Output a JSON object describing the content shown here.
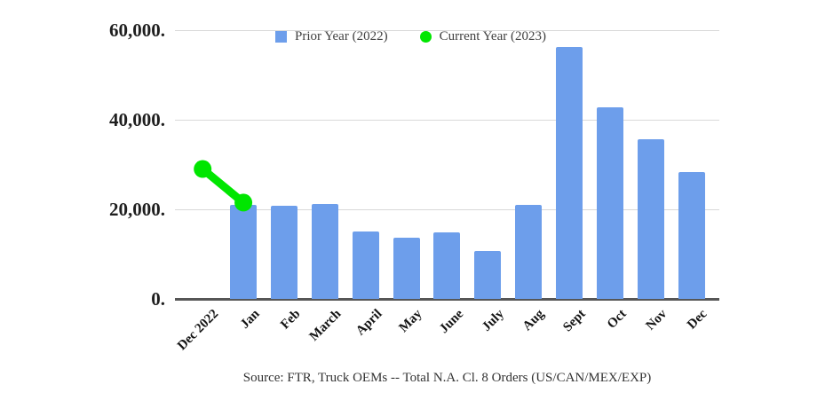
{
  "page": {
    "background_color": "#ffffff"
  },
  "legend": {
    "items": [
      {
        "label": "Prior Year (2022)",
        "marker": "square",
        "color": "#6d9eeb"
      },
      {
        "label": "Current Year (2023)",
        "marker": "circle",
        "color": "#00e600"
      }
    ]
  },
  "source_note": "Source: FTR, Truck OEMs -- Total N.A. Cl. 8 Orders (US/CAN/MEX/EXP)",
  "chart_data": {
    "type": "bar",
    "title": "",
    "xlabel": "",
    "ylabel": "",
    "categories": [
      "Dec 2022",
      "Jan",
      "Feb",
      "March",
      "April",
      "May",
      "June",
      "July",
      "Aug",
      "Sept",
      "Oct",
      "Nov",
      "Dec"
    ],
    "series": [
      {
        "name": "Prior Year (2022)",
        "type": "bar",
        "color": "#6d9eeb",
        "values": [
          null,
          21000,
          20700,
          21200,
          15100,
          13700,
          14800,
          10700,
          20900,
          56200,
          42800,
          35700,
          28400
        ]
      },
      {
        "name": "Current Year (2023)",
        "type": "line",
        "color": "#00e600",
        "values": [
          29000,
          21500,
          null,
          null,
          null,
          null,
          null,
          null,
          null,
          null,
          null,
          null,
          null
        ]
      }
    ],
    "ylim": [
      0,
      60000
    ],
    "yticks": [
      {
        "value": 0,
        "label": "0."
      },
      {
        "value": 20000,
        "label": "20,000."
      },
      {
        "value": 40000,
        "label": "40,000."
      },
      {
        "value": 60000,
        "label": "60,000."
      }
    ],
    "grid": true,
    "legend_position": "top-center"
  }
}
